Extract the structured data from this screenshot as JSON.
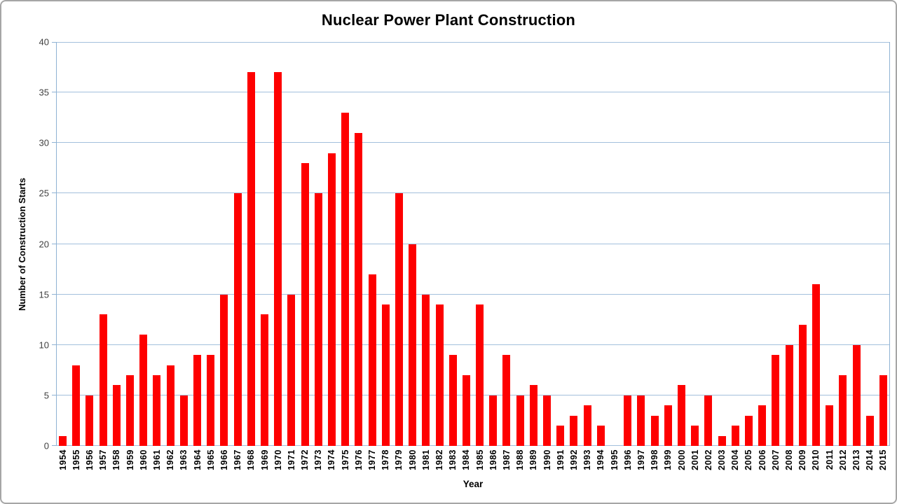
{
  "title": "Nuclear Power Plant Construction",
  "colors": {
    "bar": "#fe0000",
    "gridline": "#a3c0dc",
    "axis": "#8fb2d3",
    "tick_label": "#3f3f3f",
    "frame_border": "#a6a6a6"
  },
  "chart_data": {
    "type": "bar",
    "title": "Nuclear Power Plant Construction",
    "xlabel": "Year",
    "ylabel": "Number of Construction Starts",
    "ylim": [
      0,
      40
    ],
    "yticks": [
      0,
      5,
      10,
      15,
      20,
      25,
      30,
      35,
      40
    ],
    "grid": true,
    "legend": "none",
    "categories": [
      "1954",
      "1955",
      "1956",
      "1957",
      "1958",
      "1959",
      "1960",
      "1961",
      "1962",
      "1963",
      "1964",
      "1965",
      "1966",
      "1967",
      "1968",
      "1969",
      "1970",
      "1971",
      "1972",
      "1973",
      "1974",
      "1975",
      "1976",
      "1977",
      "1978",
      "1979",
      "1980",
      "1981",
      "1982",
      "1983",
      "1984",
      "1985",
      "1986",
      "1987",
      "1988",
      "1989",
      "1990",
      "1991",
      "1992",
      "1993",
      "1994",
      "1995",
      "1996",
      "1997",
      "1998",
      "1999",
      "2000",
      "2001",
      "2002",
      "2003",
      "2004",
      "2005",
      "2006",
      "2007",
      "2008",
      "2009",
      "2010",
      "2011",
      "2012",
      "2013",
      "2014",
      "2015"
    ],
    "values": [
      1,
      8,
      5,
      13,
      6,
      7,
      11,
      7,
      8,
      5,
      9,
      9,
      15,
      25,
      37,
      13,
      37,
      15,
      28,
      25,
      29,
      33,
      31,
      17,
      14,
      25,
      20,
      15,
      14,
      9,
      7,
      14,
      5,
      9,
      5,
      6,
      5,
      2,
      3,
      4,
      2,
      0,
      5,
      5,
      3,
      4,
      6,
      2,
      5,
      1,
      2,
      3,
      4,
      9,
      10,
      12,
      16,
      4,
      7,
      10,
      3,
      7
    ]
  }
}
